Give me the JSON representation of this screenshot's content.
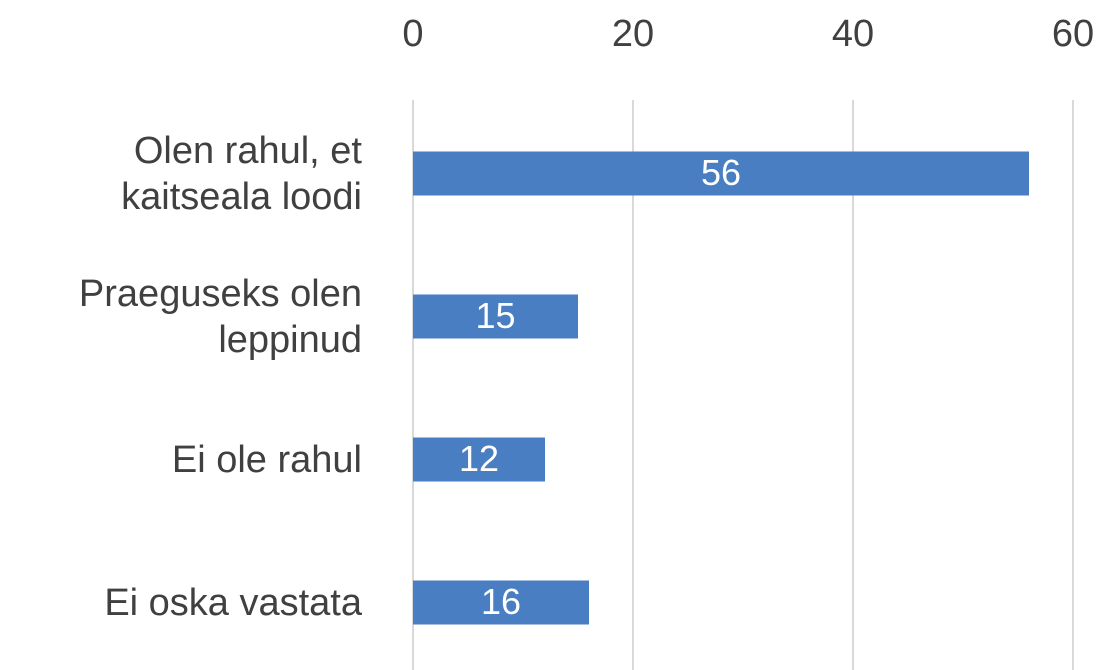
{
  "chart_data": {
    "type": "bar",
    "orientation": "horizontal",
    "categories": [
      "Olen rahul, et kaitseala loodi",
      "Praeguseks olen leppinud",
      "Ei ole rahul",
      "Ei oska vastata"
    ],
    "values": [
      56,
      15,
      12,
      16
    ],
    "color": "#4a7ec2",
    "xlim": [
      0,
      60
    ],
    "xticks": [
      0,
      20,
      40,
      60
    ],
    "grid": true
  }
}
